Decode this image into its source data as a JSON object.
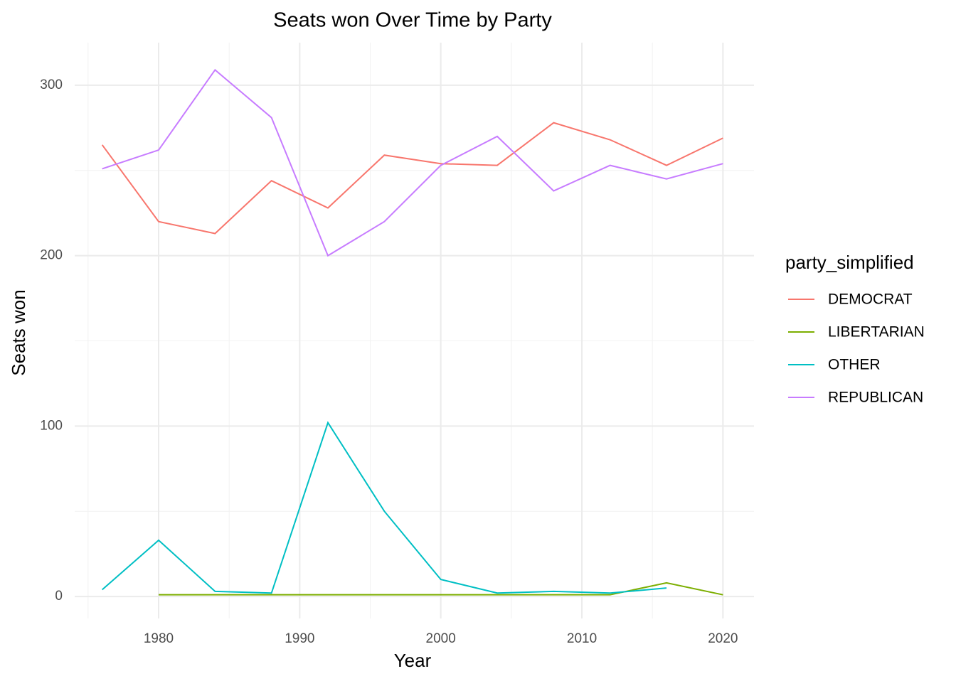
{
  "chart_data": {
    "type": "line",
    "title": "Seats won Over Time by Party",
    "x_label": "Year",
    "y_label": "Seats won",
    "legend_title": "party_simplified",
    "x": [
      1976,
      1980,
      1984,
      1988,
      1992,
      1996,
      2000,
      2004,
      2008,
      2012,
      2016,
      2020
    ],
    "series": [
      {
        "name": "DEMOCRAT",
        "color": "#F8766D",
        "values": [
          265,
          220,
          213,
          244,
          228,
          259,
          254,
          253,
          278,
          268,
          253,
          269
        ]
      },
      {
        "name": "LIBERTARIAN",
        "color": "#7CAE00",
        "values": [
          null,
          1,
          1,
          1,
          1,
          1,
          1,
          1,
          1,
          1,
          8,
          1
        ]
      },
      {
        "name": "OTHER",
        "color": "#00BFC4",
        "values": [
          4,
          33,
          3,
          2,
          102,
          50,
          10,
          2,
          3,
          2,
          5,
          null
        ]
      },
      {
        "name": "REPUBLICAN",
        "color": "#C77CFF",
        "values": [
          251,
          262,
          309,
          281,
          200,
          220,
          253,
          270,
          238,
          253,
          245,
          254
        ]
      }
    ],
    "xlim": [
      1974.05,
      2022.2
    ],
    "ylim": [
      -12.9,
      325
    ],
    "xticks": [
      1980,
      1990,
      2000,
      2010,
      2020
    ],
    "yticks": [
      0,
      100,
      200,
      300
    ],
    "x_minor_ticks": [
      1975,
      1985,
      1995,
      2005,
      2015
    ],
    "y_minor_ticks": [
      50,
      150,
      250
    ],
    "grid": true,
    "legend": "right"
  }
}
